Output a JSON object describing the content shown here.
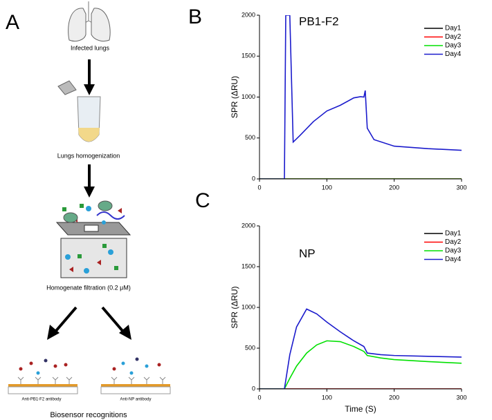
{
  "diagram": {
    "panel_label": "A",
    "steps": [
      "Infected lungs",
      "Lungs homogenization",
      "Homogenate filtration (0.2 μM)",
      "Biosensor recognitions"
    ],
    "sensors": [
      "Anti-PB1-F2 antibody",
      "Anti-NP antibody"
    ]
  },
  "chart_data": [
    {
      "type": "line",
      "panel_label": "B",
      "annotation": "PB1-F2",
      "ylabel": "SPR (ΔRU)",
      "x": [
        0,
        37,
        39,
        45,
        50,
        60,
        80,
        100,
        120,
        140,
        150,
        155,
        157,
        160,
        170,
        200,
        250,
        300
      ],
      "series": [
        {
          "name": "Day1",
          "color": "#000000",
          "values": [
            0,
            0,
            0,
            0,
            0,
            0,
            0,
            0,
            0,
            0,
            0,
            0,
            0,
            0,
            0,
            0,
            0,
            0
          ]
        },
        {
          "name": "Day2",
          "color": "#ff0000",
          "values": [
            0,
            0,
            0,
            0,
            0,
            0,
            0,
            0,
            0,
            0,
            0,
            0,
            0,
            0,
            0,
            0,
            0,
            0
          ]
        },
        {
          "name": "Day3",
          "color": "#00e000",
          "values": [
            0,
            0,
            0,
            0,
            0,
            0,
            0,
            0,
            0,
            0,
            0,
            0,
            0,
            0,
            0,
            0,
            0,
            0
          ]
        },
        {
          "name": "Day4",
          "color": "#1a1acc",
          "values": [
            0,
            0,
            2000,
            2000,
            450,
            530,
            700,
            830,
            900,
            990,
            1005,
            1000,
            1080,
            620,
            480,
            400,
            370,
            350
          ]
        }
      ],
      "xlim": [
        0,
        300
      ],
      "xticks": [
        0,
        100,
        200,
        300
      ],
      "ylim": [
        0,
        2000
      ],
      "yticks": [
        0,
        500,
        1000,
        1500,
        2000
      ],
      "legend": "upper right"
    },
    {
      "type": "line",
      "panel_label": "C",
      "annotation": "NP",
      "ylabel": "SPR (ΔRU)",
      "xlabel": "Time (S)",
      "x": [
        0,
        37,
        45,
        55,
        70,
        85,
        100,
        120,
        140,
        155,
        160,
        180,
        200,
        250,
        300
      ],
      "series": [
        {
          "name": "Day1",
          "color": "#000000",
          "values": [
            0,
            0,
            0,
            0,
            0,
            0,
            0,
            0,
            0,
            0,
            0,
            0,
            0,
            0,
            0
          ]
        },
        {
          "name": "Day2",
          "color": "#ff0000",
          "values": [
            0,
            0,
            0,
            0,
            0,
            0,
            0,
            0,
            0,
            0,
            0,
            0,
            0,
            0,
            0
          ]
        },
        {
          "name": "Day3",
          "color": "#00e000",
          "values": [
            0,
            0,
            130,
            280,
            440,
            540,
            590,
            580,
            520,
            460,
            410,
            380,
            360,
            335,
            315
          ]
        },
        {
          "name": "Day4",
          "color": "#1a1acc",
          "values": [
            0,
            0,
            420,
            760,
            980,
            920,
            820,
            700,
            590,
            520,
            440,
            420,
            410,
            400,
            390
          ]
        }
      ],
      "xlim": [
        0,
        300
      ],
      "xticks": [
        0,
        100,
        200,
        300
      ],
      "ylim": [
        0,
        2000
      ],
      "yticks": [
        0,
        500,
        1000,
        1500,
        2000
      ],
      "legend": "upper right"
    }
  ]
}
